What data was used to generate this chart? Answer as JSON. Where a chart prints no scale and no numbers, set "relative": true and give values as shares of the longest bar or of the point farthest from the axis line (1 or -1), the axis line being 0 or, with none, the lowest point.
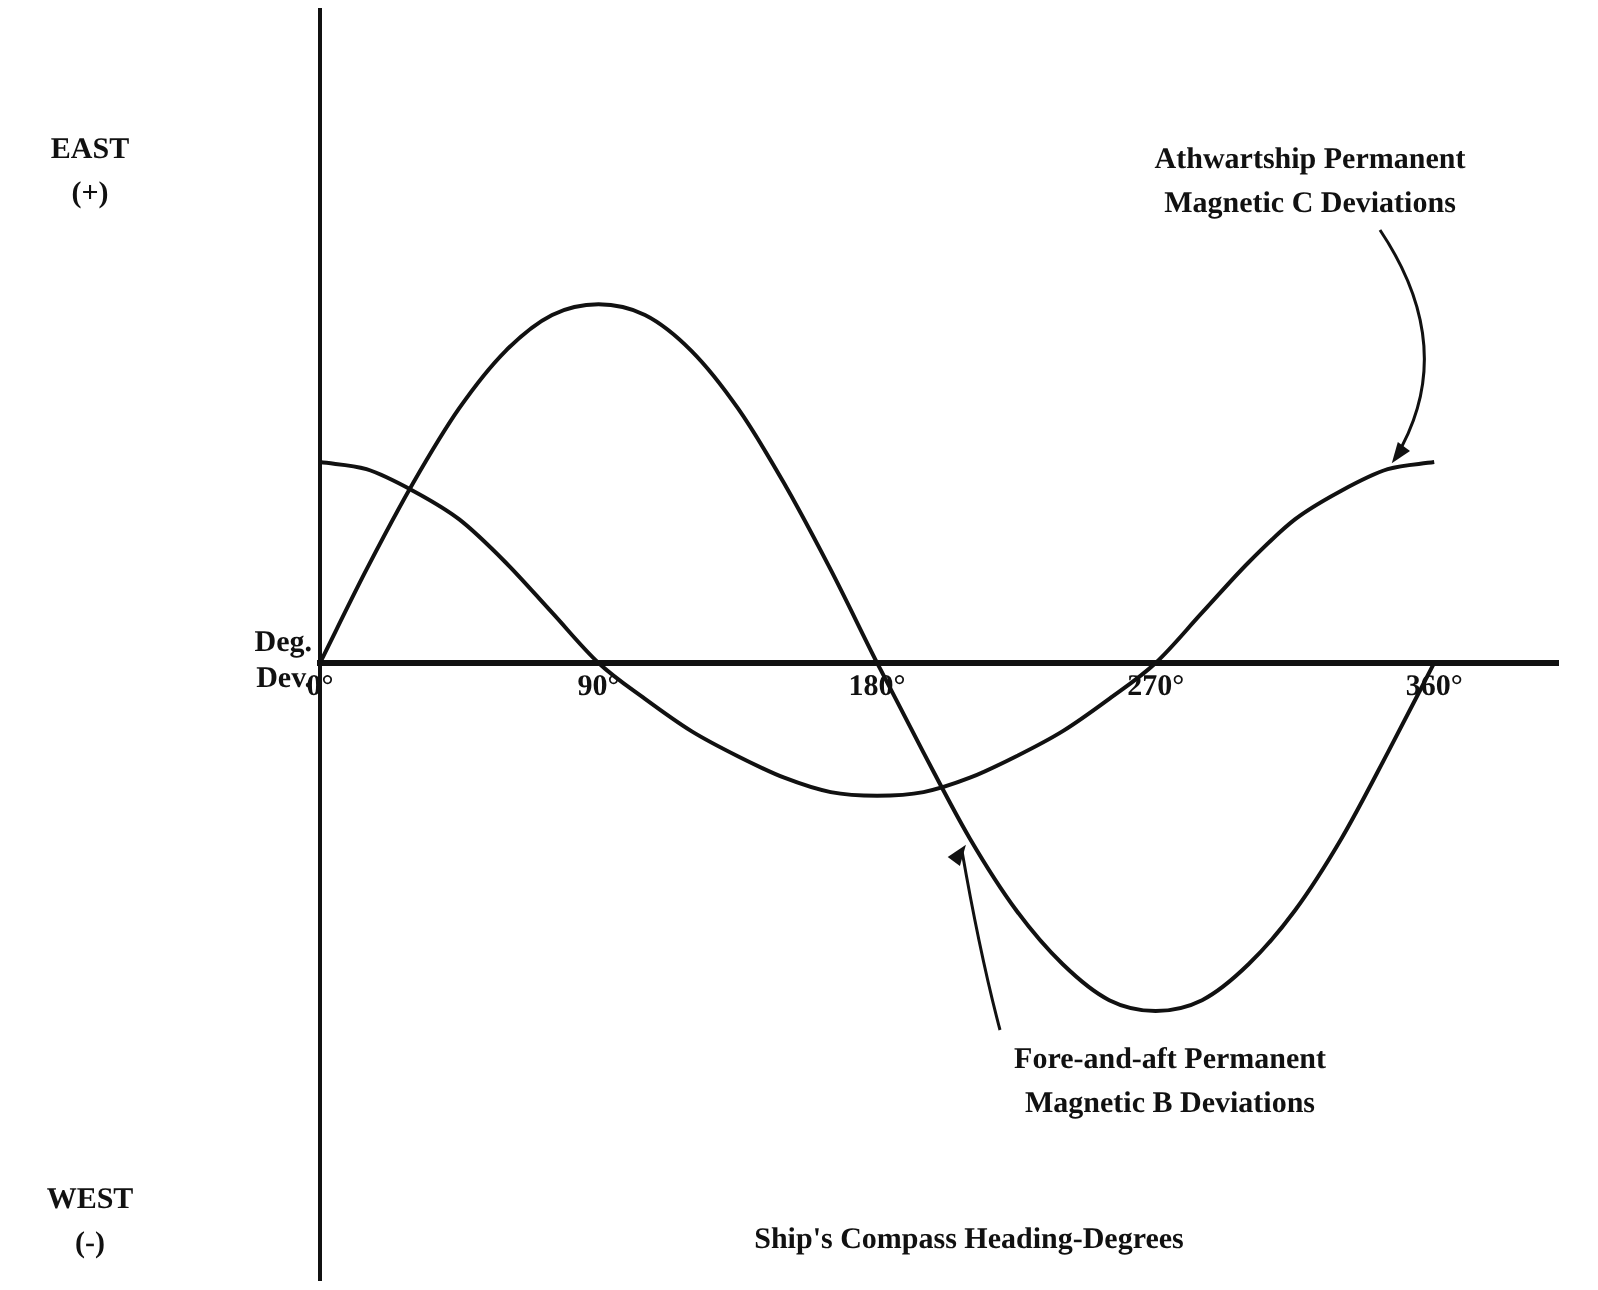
{
  "chart_data": {
    "type": "line",
    "relative": true,
    "ylabel": "Deg.\nDev.",
    "annotations": [
      "EAST\n(+)",
      "WEST\n(-)",
      "Ship's Compass Heading-Degrees"
    ],
    "x": [
      0,
      15,
      30,
      45,
      60,
      75,
      90,
      105,
      120,
      135,
      150,
      165,
      180,
      195,
      210,
      225,
      240,
      255,
      270,
      285,
      300,
      315,
      330,
      345,
      360
    ],
    "xlim": [
      0,
      400
    ],
    "xticks": [
      {
        "value": 0,
        "label": "0°"
      },
      {
        "value": 90,
        "label": "90°"
      },
      {
        "value": 180,
        "label": "180°"
      },
      {
        "value": 270,
        "label": "270°"
      },
      {
        "value": 360,
        "label": "360°"
      }
    ],
    "series": [
      {
        "name": "Athwartship Permanent Magnetic C Deviations",
        "color": "#111111",
        "values": [
          0.56,
          0.54,
          0.48,
          0.4,
          0.28,
          0.14,
          0,
          -0.1,
          -0.19,
          -0.26,
          -0.32,
          -0.36,
          -0.37,
          -0.36,
          -0.32,
          -0.26,
          -0.19,
          -0.1,
          0,
          0.14,
          0.28,
          0.4,
          0.48,
          0.54,
          0.56
        ]
      },
      {
        "name": "Fore-and-aft Permanent Magnetic B Deviations",
        "color": "#111111",
        "values": [
          0,
          0.26,
          0.5,
          0.71,
          0.87,
          0.97,
          1,
          0.97,
          0.87,
          0.71,
          0.5,
          0.26,
          0,
          -0.25,
          -0.49,
          -0.69,
          -0.84,
          -0.94,
          -0.97,
          -0.94,
          -0.84,
          -0.69,
          -0.49,
          -0.25,
          0
        ]
      }
    ],
    "legend": false,
    "grid": false,
    "marker": "none",
    "line_style": "solid"
  }
}
